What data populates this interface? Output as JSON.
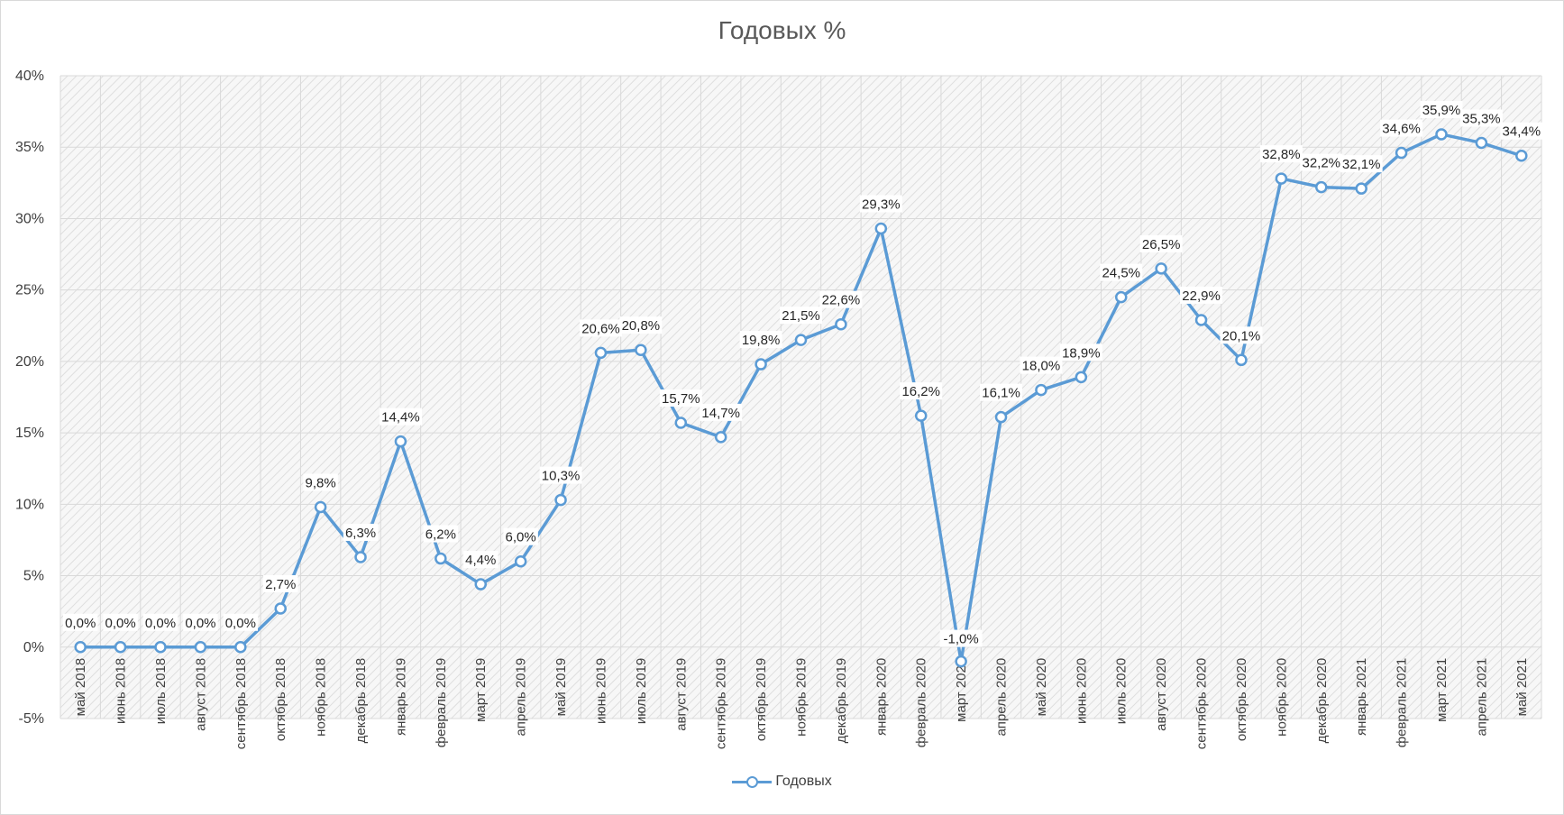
{
  "chart_data": {
    "type": "line",
    "title": "Годовых %",
    "xlabel": "",
    "ylabel": "",
    "ylim": [
      -5,
      40
    ],
    "yticks": [
      "-5%",
      "0%",
      "5%",
      "10%",
      "15%",
      "20%",
      "25%",
      "30%",
      "35%",
      "40%"
    ],
    "grid": true,
    "legend": "bottom",
    "colors": {
      "series": "#5b9bd5",
      "grid": "#d9d9d9",
      "text": "#404040"
    },
    "categories": [
      "май 2018",
      "июнь 2018",
      "июль 2018",
      "август 2018",
      "сентябрь 2018",
      "октябрь 2018",
      "ноябрь 2018",
      "декабрь 2018",
      "январь 2019",
      "февраль 2019",
      "март 2019",
      "апрель 2019",
      "май 2019",
      "июнь 2019",
      "июль 2019",
      "август 2019",
      "сентябрь 2019",
      "октябрь 2019",
      "ноябрь 2019",
      "декабрь 2019",
      "январь 2020",
      "февраль 2020",
      "март 2020",
      "апрель 2020",
      "май 2020",
      "июнь 2020",
      "июль 2020",
      "август 2020",
      "сентябрь 2020",
      "октябрь 2020",
      "ноябрь 2020",
      "декабрь 2020",
      "январь 2021",
      "февраль 2021",
      "март 2021",
      "апрель 2021",
      "май 2021"
    ],
    "series": [
      {
        "name": "Годовых",
        "values": [
          0.0,
          0.0,
          0.0,
          0.0,
          0.0,
          2.7,
          9.8,
          6.3,
          14.4,
          6.2,
          4.4,
          6.0,
          10.3,
          20.6,
          20.8,
          15.7,
          14.7,
          19.8,
          21.5,
          22.6,
          29.3,
          16.2,
          -1.0,
          16.1,
          18.0,
          18.9,
          24.5,
          26.5,
          22.9,
          20.1,
          32.8,
          32.2,
          32.1,
          34.6,
          35.9,
          35.3,
          34.4
        ],
        "labels": [
          "0,0%",
          "0,0%",
          "0,0%",
          "0,0%",
          "0,0%",
          "2,7%",
          "9,8%",
          "6,3%",
          "14,4%",
          "6,2%",
          "4,4%",
          "6,0%",
          "10,3%",
          "20,6%",
          "20,8%",
          "15,7%",
          "14,7%",
          "19,8%",
          "21,5%",
          "22,6%",
          "29,3%",
          "16,2%",
          "-1,0%",
          "16,1%",
          "18,0%",
          "18,9%",
          "24,5%",
          "26,5%",
          "22,9%",
          "20,1%",
          "32,8%",
          "32,2%",
          "32,1%",
          "34,6%",
          "35,9%",
          "35,3%",
          "34,4%"
        ]
      }
    ]
  }
}
